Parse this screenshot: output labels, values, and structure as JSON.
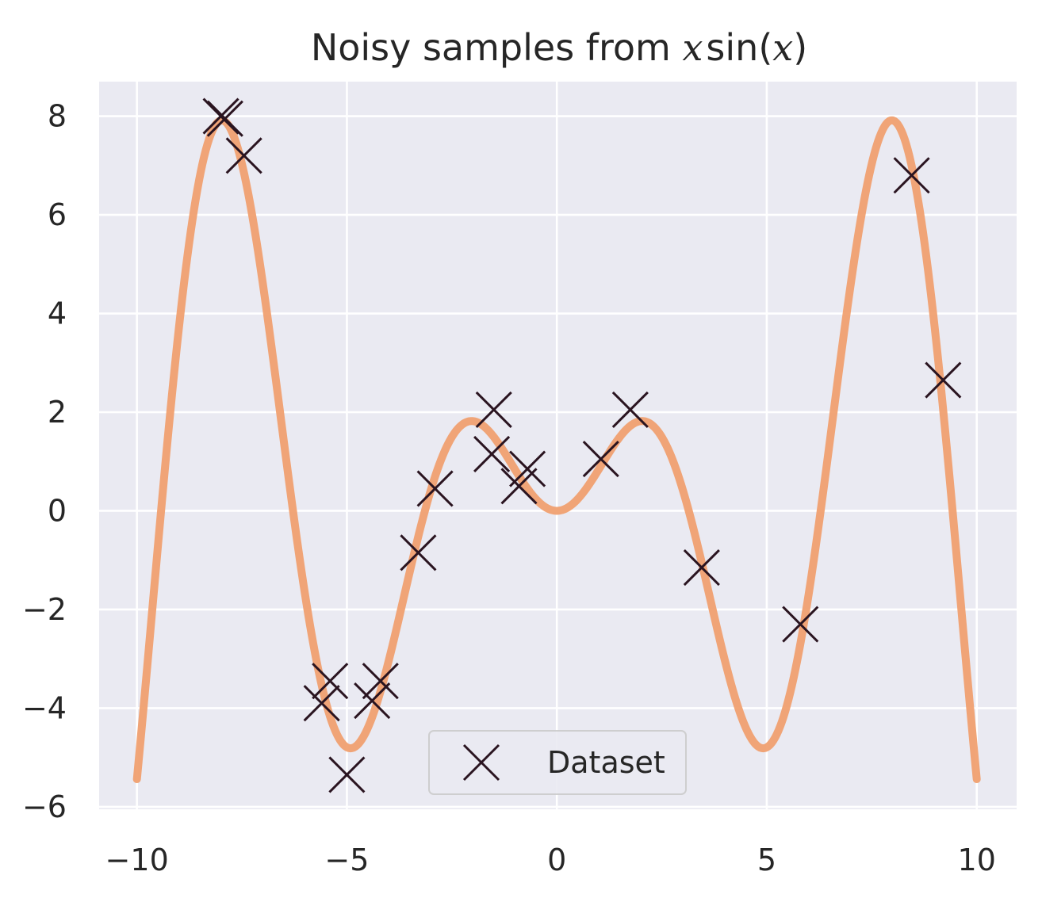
{
  "chart_data": {
    "type": "line",
    "title": "Noisy samples from x sin(x)",
    "title_parts": {
      "prefix": "Noisy samples from ",
      "func_var": "x",
      "func_name": "sin",
      "open_paren": "(",
      "arg": "x",
      "close_paren": ")"
    },
    "xlabel": "",
    "ylabel": "",
    "xlim": [
      -10.9,
      10.95
    ],
    "ylim": [
      -6.05,
      8.7
    ],
    "x_ticks": [
      -10,
      -5,
      0,
      5,
      10
    ],
    "x_tick_labels": [
      "−10",
      "−5",
      "0",
      "5",
      "10"
    ],
    "y_ticks": [
      -6,
      -4,
      -2,
      0,
      2,
      4,
      6,
      8
    ],
    "y_tick_labels": [
      "−6",
      "−4",
      "−2",
      "0",
      "2",
      "4",
      "6",
      "8"
    ],
    "grid": true,
    "background_color": "#eaeaf2",
    "series": [
      {
        "kind": "line",
        "function": "x*sin(x)",
        "domain": [
          -10,
          10
        ],
        "color": "#f0a070"
      },
      {
        "name": "Dataset",
        "kind": "scatter",
        "marker": "x",
        "color": "#2a1420",
        "points": [
          {
            "x": -8.0,
            "y": 8.0
          },
          {
            "x": -7.9,
            "y": 7.95
          },
          {
            "x": -7.45,
            "y": 7.2
          },
          {
            "x": -5.6,
            "y": -3.9
          },
          {
            "x": -5.4,
            "y": -3.45
          },
          {
            "x": -5.0,
            "y": -5.35
          },
          {
            "x": -4.4,
            "y": -3.85
          },
          {
            "x": -4.2,
            "y": -3.45
          },
          {
            "x": -3.3,
            "y": -0.85
          },
          {
            "x": -2.9,
            "y": 0.45
          },
          {
            "x": -1.55,
            "y": 1.15
          },
          {
            "x": -1.5,
            "y": 2.05
          },
          {
            "x": -0.9,
            "y": 0.5
          },
          {
            "x": -0.7,
            "y": 0.85
          },
          {
            "x": 1.05,
            "y": 1.05
          },
          {
            "x": 1.75,
            "y": 2.05
          },
          {
            "x": 3.45,
            "y": -1.15
          },
          {
            "x": 5.8,
            "y": -2.3
          },
          {
            "x": 8.45,
            "y": 6.8
          },
          {
            "x": 9.2,
            "y": 2.65
          }
        ]
      }
    ],
    "legend": {
      "position": "lower center",
      "entries": [
        "Dataset"
      ]
    }
  }
}
